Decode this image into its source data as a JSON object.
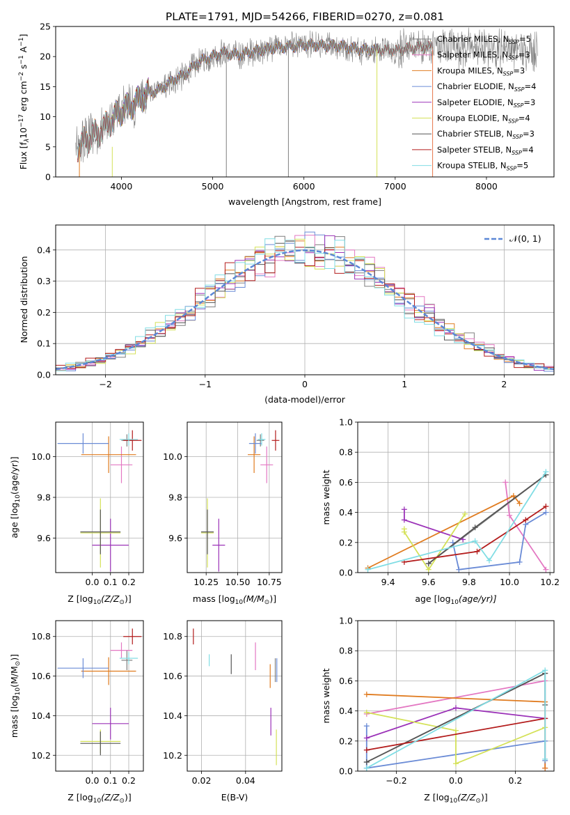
{
  "figure_title": "PLATE=1791, MJD=54266, FIBERID=0270, z=0.081",
  "colors": {
    "Chabrier MILES": "#7f7f7f",
    "Salpeter MILES": "#e377c2",
    "Kroupa MILES": "#e07b1f",
    "Chabrier ELODIE": "#6a8bd6",
    "Salpeter ELODIE": "#9b32b8",
    "Kroupa ELODIE": "#d4e157",
    "Chabrier STELIB": "#555555",
    "Salpeter STELIB": "#b31b1b",
    "Kroupa STELIB": "#80dde4",
    "gauss": "#5b87d6"
  },
  "chart_data": [
    {
      "id": "spectrum",
      "type": "line",
      "title": "PLATE=1791, MJD=54266, FIBERID=0270, z=0.081",
      "xlabel": "wavelength [Angstrom, rest frame]",
      "ylabel_parts": [
        "Flux [f",
        "λ",
        "10",
        "−17",
        " erg cm",
        "−2",
        " s",
        "−1",
        " A",
        "−1",
        "]"
      ],
      "xlim": [
        3280,
        8740
      ],
      "ylim": [
        0,
        25
      ],
      "xticks": [
        4000,
        5000,
        6000,
        7000,
        8000
      ],
      "yticks": [
        0,
        5,
        10,
        15,
        20,
        25
      ],
      "grid": false,
      "legend_position": "top-right",
      "continuum": {
        "wavelength": [
          3530,
          3600,
          3700,
          3800,
          3900,
          4000,
          4100,
          4200,
          4300,
          4400,
          4500,
          4600,
          4700,
          4800,
          4900,
          5000,
          5100,
          5200,
          5300,
          5500,
          5700,
          5900,
          6000,
          6200,
          6400,
          6600,
          6800,
          7000,
          7200,
          7400,
          7800,
          8200,
          8500
        ],
        "flux": [
          5,
          6,
          7,
          8,
          9.5,
          11,
          11.8,
          12.8,
          14,
          14.3,
          15.3,
          16.4,
          17,
          18.5,
          19.5,
          20,
          20.7,
          20.4,
          20.3,
          21,
          21.5,
          21.7,
          22,
          21.8,
          21.8,
          21.2,
          21.1,
          21,
          21.5,
          21.6,
          21.5,
          21.2,
          21
        ]
      },
      "spikes": [
        {
          "wavelength": 5150,
          "flux_min": 0,
          "flux_max": 21
        },
        {
          "wavelength": 5830,
          "flux_min": 0,
          "flux_max": 22
        },
        {
          "wavelength": 6800,
          "flux_min": 0,
          "flux_max": 21
        },
        {
          "wavelength": 7410,
          "flux_min": 0,
          "flux_max": 21
        }
      ],
      "series": [
        {
          "name_parts": [
            "Chabrier MILES, N",
            "SSP",
            "=5"
          ],
          "color_key": "Chabrier MILES",
          "start": 3540,
          "end": 8500
        },
        {
          "name_parts": [
            "Salpeter MILES, N",
            "SSP",
            "=3"
          ],
          "color_key": "Salpeter MILES",
          "start": 3540,
          "end": 7410
        },
        {
          "name_parts": [
            "Kroupa MILES, N",
            "SSP",
            "=3"
          ],
          "color_key": "Kroupa MILES",
          "start": 3540,
          "end": 7410
        },
        {
          "name_parts": [
            "Chabrier ELODIE, N",
            "SSP",
            "=4"
          ],
          "color_key": "Chabrier ELODIE",
          "start": 3900,
          "end": 6800
        },
        {
          "name_parts": [
            "Salpeter ELODIE, N",
            "SSP",
            "=3"
          ],
          "color_key": "Salpeter ELODIE",
          "start": 3900,
          "end": 6800
        },
        {
          "name_parts": [
            "Kroupa ELODIE, N",
            "SSP",
            "=4"
          ],
          "color_key": "Kroupa ELODIE",
          "start": 3900,
          "end": 6800
        },
        {
          "name_parts": [
            "Chabrier STELIB, N",
            "SSP",
            "=3"
          ],
          "color_key": "Chabrier STELIB",
          "start": 3520,
          "end": 7410
        },
        {
          "name_parts": [
            "Salpeter STELIB, N",
            "SSP",
            "=4"
          ],
          "color_key": "Salpeter STELIB",
          "start": 3520,
          "end": 7410
        },
        {
          "name_parts": [
            "Kroupa STELIB, N",
            "SSP",
            "=5"
          ],
          "color_key": "Kroupa STELIB",
          "start": 3520,
          "end": 7410
        }
      ]
    },
    {
      "id": "residuals",
      "type": "histogram",
      "xlabel": "(data-model)/error",
      "ylabel": "Normed distribution",
      "xlim": [
        -2.5,
        2.5
      ],
      "ylim": [
        0,
        0.48
      ],
      "xticks": [
        -2,
        -1,
        0,
        1,
        2
      ],
      "yticks": [
        0.0,
        0.1,
        0.2,
        0.3,
        0.4
      ],
      "grid": true,
      "legend_position": "top-right",
      "legend": [
        "𝒩(0, 1)"
      ],
      "bin_width": 0.1,
      "series_colors": [
        "Chabrier MILES",
        "Salpeter MILES",
        "Kroupa MILES",
        "Chabrier ELODIE",
        "Salpeter ELODIE",
        "Kroupa ELODIE",
        "Chabrier STELIB",
        "Salpeter STELIB",
        "Kroupa STELIB"
      ]
    },
    {
      "id": "age_vs_Z",
      "type": "errorbar",
      "xlabel_parts": [
        "Z [log",
        "10",
        "(Z/Z",
        "⊙",
        ")]"
      ],
      "ylabel_parts": [
        "age  [log",
        "10",
        "(age/yr)]"
      ],
      "xlim": [
        -0.2,
        0.28
      ],
      "ylim": [
        9.43,
        10.17
      ],
      "xticks": [
        0.0,
        0.1,
        0.2
      ],
      "yticks": [
        9.6,
        9.8,
        10.0
      ],
      "grid": true,
      "points": [
        {
          "c": "Chabrier MILES",
          "x": 0.19,
          "y": 10.08,
          "xerr": 0.03,
          "yerr": 0.03
        },
        {
          "c": "Salpeter MILES",
          "x": 0.16,
          "y": 9.96,
          "xerr": 0.06,
          "yerr": 0.09
        },
        {
          "c": "Kroupa MILES",
          "x": 0.09,
          "y": 10.01,
          "xerr": 0.15,
          "yerr": 0.09
        },
        {
          "c": "Chabrier ELODIE",
          "x": -0.05,
          "y": 10.065,
          "xerr": 0.14,
          "yerr": 0.05
        },
        {
          "c": "Salpeter ELODIE",
          "x": 0.1,
          "y": 9.565,
          "xerr": 0.1,
          "yerr": 0.13
        },
        {
          "c": "Kroupa ELODIE",
          "x": 0.045,
          "y": 9.625,
          "xerr": 0.11,
          "yerr": 0.17
        },
        {
          "c": "Chabrier STELIB",
          "x": 0.045,
          "y": 9.63,
          "xerr": 0.11,
          "yerr": 0.11
        },
        {
          "c": "Salpeter STELIB",
          "x": 0.22,
          "y": 10.08,
          "xerr": 0.05,
          "yerr": 0.05
        },
        {
          "c": "Kroupa STELIB",
          "x": 0.2,
          "y": 10.085,
          "xerr": 0.05,
          "yerr": 0.03
        }
      ]
    },
    {
      "id": "age_vs_mass",
      "type": "errorbar",
      "xlabel_parts": [
        "mass [log",
        "10",
        "(M/M",
        "⊙",
        ")]"
      ],
      "ylabel_parts": [],
      "xlim": [
        10.1,
        10.85
      ],
      "ylim": [
        9.43,
        10.17
      ],
      "xticks": [
        10.25,
        10.5,
        10.75
      ],
      "xtick_labels": [
        "10.25",
        "10.50",
        "10.75"
      ],
      "yticks": [
        9.6,
        9.8,
        10.0
      ],
      "grid": true,
      "points": [
        {
          "c": "Chabrier MILES",
          "x": 10.68,
          "y": 10.08,
          "xerr": 0.03,
          "yerr": 0.03
        },
        {
          "c": "Salpeter MILES",
          "x": 10.73,
          "y": 9.96,
          "xerr": 0.05,
          "yerr": 0.09
        },
        {
          "c": "Kroupa MILES",
          "x": 10.63,
          "y": 10.01,
          "xerr": 0.05,
          "yerr": 0.09
        },
        {
          "c": "Chabrier ELODIE",
          "x": 10.64,
          "y": 10.065,
          "xerr": 0.05,
          "yerr": 0.05
        },
        {
          "c": "Salpeter ELODIE",
          "x": 10.35,
          "y": 9.565,
          "xerr": 0.05,
          "yerr": 0.13
        },
        {
          "c": "Kroupa ELODIE",
          "x": 10.26,
          "y": 9.625,
          "xerr": 0.05,
          "yerr": 0.17
        },
        {
          "c": "Chabrier STELIB",
          "x": 10.26,
          "y": 9.63,
          "xerr": 0.05,
          "yerr": 0.11
        },
        {
          "c": "Salpeter STELIB",
          "x": 10.8,
          "y": 10.08,
          "xerr": 0.03,
          "yerr": 0.05
        },
        {
          "c": "Kroupa STELIB",
          "x": 10.69,
          "y": 10.085,
          "xerr": 0.03,
          "yerr": 0.03
        }
      ]
    },
    {
      "id": "weights_vs_age",
      "type": "line",
      "xlabel_parts": [
        "age  [log",
        "10",
        "(age/yr)]"
      ],
      "ylabel": "mass weight",
      "xlim": [
        9.25,
        10.22
      ],
      "ylim": [
        0,
        1.0
      ],
      "xticks": [
        9.4,
        9.6,
        9.8,
        10.0,
        10.2
      ],
      "yticks": [
        0.0,
        0.2,
        0.4,
        0.6,
        0.8,
        1.0
      ],
      "grid": true,
      "series": [
        {
          "c": "Chabrier MILES",
          "x": [
            9.6,
            10.18
          ],
          "y": [
            0.06,
            0.65
          ]
        },
        {
          "c": "Salpeter MILES",
          "x": [
            9.98,
            10.0,
            10.18
          ],
          "y": [
            0.6,
            0.38,
            0.02
          ]
        },
        {
          "c": "Kroupa MILES",
          "x": [
            9.3,
            10.02,
            10.05
          ],
          "y": [
            0.03,
            0.51,
            0.46
          ]
        },
        {
          "c": "Chabrier ELODIE",
          "x": [
            9.72,
            9.75,
            10.05,
            10.08,
            10.18
          ],
          "y": [
            0.2,
            0.02,
            0.07,
            0.32,
            0.4
          ]
        },
        {
          "c": "Salpeter ELODIE",
          "x": [
            9.48,
            9.48,
            9.77
          ],
          "y": [
            0.42,
            0.35,
            0.22
          ]
        },
        {
          "c": "Kroupa ELODIE",
          "x": [
            9.48,
            9.48,
            9.6,
            9.78
          ],
          "y": [
            0.29,
            0.27,
            0.02,
            0.39
          ]
        },
        {
          "c": "Chabrier STELIB",
          "x": [
            9.6,
            9.83,
            10.18
          ],
          "y": [
            0.06,
            0.3,
            0.65
          ]
        },
        {
          "c": "Salpeter STELIB",
          "x": [
            9.48,
            9.84,
            10.08,
            10.18
          ],
          "y": [
            0.07,
            0.14,
            0.35,
            0.44
          ]
        },
        {
          "c": "Kroupa STELIB",
          "x": [
            9.3,
            9.83,
            9.9,
            10.18
          ],
          "y": [
            0.02,
            0.21,
            0.08,
            0.67
          ]
        }
      ]
    },
    {
      "id": "mass_vs_Z",
      "type": "errorbar",
      "xlabel_parts": [
        "Z [log",
        "10",
        "(Z/Z",
        "⊙",
        ")]"
      ],
      "ylabel_parts": [
        "mass [log",
        "10",
        "(M/M",
        "⊙",
        ")]"
      ],
      "xlim": [
        -0.2,
        0.28
      ],
      "ylim": [
        10.12,
        10.88
      ],
      "xticks": [
        0.0,
        0.1,
        0.2
      ],
      "yticks": [
        10.2,
        10.4,
        10.6,
        10.8
      ],
      "grid": true,
      "points": [
        {
          "c": "Chabrier MILES",
          "x": 0.19,
          "y": 10.68,
          "xerr": 0.03,
          "yerr": 0.05
        },
        {
          "c": "Salpeter MILES",
          "x": 0.16,
          "y": 10.73,
          "xerr": 0.06,
          "yerr": 0.04
        },
        {
          "c": "Kroupa MILES",
          "x": 0.09,
          "y": 10.625,
          "xerr": 0.15,
          "yerr": 0.07
        },
        {
          "c": "Chabrier ELODIE",
          "x": -0.05,
          "y": 10.64,
          "xerr": 0.14,
          "yerr": 0.05
        },
        {
          "c": "Salpeter ELODIE",
          "x": 0.1,
          "y": 10.36,
          "xerr": 0.1,
          "yerr": 0.08
        },
        {
          "c": "Kroupa ELODIE",
          "x": 0.045,
          "y": 10.27,
          "xerr": 0.11,
          "yerr": 0.06
        },
        {
          "c": "Chabrier STELIB",
          "x": 0.045,
          "y": 10.26,
          "xerr": 0.11,
          "yerr": 0.06
        },
        {
          "c": "Salpeter STELIB",
          "x": 0.22,
          "y": 10.8,
          "xerr": 0.05,
          "yerr": 0.04
        },
        {
          "c": "Kroupa STELIB",
          "x": 0.2,
          "y": 10.69,
          "xerr": 0.05,
          "yerr": 0.03
        }
      ]
    },
    {
      "id": "mass_vs_ebv",
      "type": "errorbar",
      "xlabel": "E(B-V)",
      "ylabel_parts": [],
      "xlim": [
        0.0135,
        0.0565
      ],
      "ylim": [
        10.12,
        10.88
      ],
      "xticks": [
        0.02,
        0.04
      ],
      "yticks": [
        10.2,
        10.4,
        10.6,
        10.8
      ],
      "grid": true,
      "points": [
        {
          "c": "Chabrier MILES",
          "x": 0.0535,
          "y": 10.63,
          "xerr": 0,
          "yerr": 0.06
        },
        {
          "c": "Salpeter MILES",
          "x": 0.0445,
          "y": 10.7,
          "xerr": 0,
          "yerr": 0.07
        },
        {
          "c": "Kroupa MILES",
          "x": 0.0512,
          "y": 10.6,
          "xerr": 0,
          "yerr": 0.06
        },
        {
          "c": "Chabrier ELODIE",
          "x": 0.0542,
          "y": 10.63,
          "xerr": 0,
          "yerr": 0.06
        },
        {
          "c": "Salpeter ELODIE",
          "x": 0.0515,
          "y": 10.37,
          "xerr": 0,
          "yerr": 0.07
        },
        {
          "c": "Kroupa ELODIE",
          "x": 0.054,
          "y": 10.24,
          "xerr": 0,
          "yerr": 0.09
        },
        {
          "c": "Chabrier STELIB",
          "x": 0.0335,
          "y": 10.66,
          "xerr": 0,
          "yerr": 0.05
        },
        {
          "c": "Salpeter STELIB",
          "x": 0.0163,
          "y": 10.8,
          "xerr": 0,
          "yerr": 0.04
        },
        {
          "c": "Kroupa STELIB",
          "x": 0.0235,
          "y": 10.68,
          "xerr": 0,
          "yerr": 0.03
        }
      ]
    },
    {
      "id": "weights_vs_Z",
      "type": "line",
      "xlabel_parts": [
        "Z [log",
        "10",
        "(Z/Z",
        "⊙",
        ")]"
      ],
      "ylabel": "mass weight",
      "xlim": [
        -0.33,
        0.33
      ],
      "ylim": [
        0,
        1.0
      ],
      "xticks": [
        -0.2,
        0.0,
        0.2
      ],
      "xtick_labels": [
        "−0.2",
        "0.0",
        "0.2"
      ],
      "yticks": [
        0.0,
        0.2,
        0.4,
        0.6,
        0.8,
        1.0
      ],
      "grid": true,
      "series": [
        {
          "c": "Chabrier MILES",
          "x": [
            -0.3,
            0.3
          ],
          "y": [
            0.06,
            0.65
          ]
        },
        {
          "c": "Salpeter MILES",
          "x": [
            -0.3,
            0.3,
            0.3
          ],
          "y": [
            0.38,
            0.6,
            0.02
          ]
        },
        {
          "c": "Kroupa MILES",
          "x": [
            -0.3,
            0.3,
            0.3
          ],
          "y": [
            0.51,
            0.46,
            0.02
          ]
        },
        {
          "c": "Chabrier ELODIE",
          "x": [
            -0.3,
            -0.3,
            0.3,
            0.3
          ],
          "y": [
            0.3,
            0.02,
            0.2,
            0.07
          ]
        },
        {
          "c": "Salpeter ELODIE",
          "x": [
            -0.3,
            0.0,
            0.3
          ],
          "y": [
            0.22,
            0.42,
            0.35
          ]
        },
        {
          "c": "Kroupa ELODIE",
          "x": [
            -0.3,
            0.0,
            0.0,
            0.3
          ],
          "y": [
            0.39,
            0.27,
            0.05,
            0.29
          ]
        },
        {
          "c": "Chabrier STELIB",
          "x": [
            -0.3,
            0.3,
            0.3
          ],
          "y": [
            0.06,
            0.65,
            0.44
          ]
        },
        {
          "c": "Salpeter STELIB",
          "x": [
            -0.3,
            0.3
          ],
          "y": [
            0.14,
            0.35
          ]
        },
        {
          "c": "Kroupa STELIB",
          "x": [
            -0.3,
            0.3,
            0.3
          ],
          "y": [
            0.02,
            0.67,
            0.08
          ]
        }
      ]
    }
  ]
}
